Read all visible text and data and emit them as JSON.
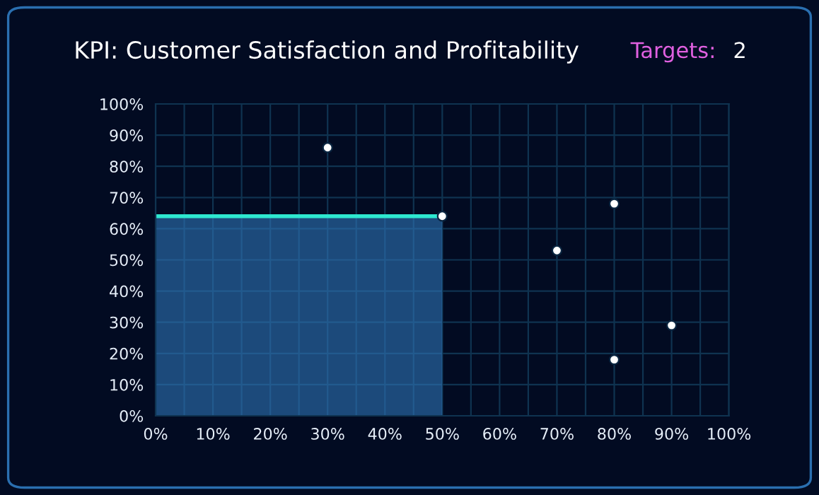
{
  "chart_data": {
    "type": "scatter",
    "title": "KPI: Customer Satisfaction and Profitability",
    "annotations": [
      "Targets:",
      "2"
    ],
    "series": [
      {
        "type": "area",
        "color": "#2ee8d0",
        "x": [
          0,
          50
        ],
        "values": [
          64,
          64
        ]
      },
      {
        "color": "#ffffff",
        "marker": "circle",
        "x": [
          50
        ],
        "values": [
          64
        ]
      },
      {
        "color": "#ffffff",
        "marker": "circle",
        "x": [
          30,
          70,
          80,
          80,
          90
        ],
        "values": [
          86,
          53,
          68,
          18,
          29
        ]
      }
    ],
    "xlim": [
      0,
      100
    ],
    "xticks": [
      {
        "value": 0,
        "label": "0%"
      },
      {
        "value": 5,
        "label": null
      },
      {
        "value": 10,
        "label": "10%"
      },
      {
        "value": 15,
        "label": null
      },
      {
        "value": 20,
        "label": "20%"
      },
      {
        "value": 25,
        "label": null
      },
      {
        "value": 30,
        "label": "30%"
      },
      {
        "value": 35,
        "label": null
      },
      {
        "value": 40,
        "label": "40%"
      },
      {
        "value": 45,
        "label": null
      },
      {
        "value": 50,
        "label": "50%"
      },
      {
        "value": 55,
        "label": null
      },
      {
        "value": 60,
        "label": "60%"
      },
      {
        "value": 65,
        "label": null
      },
      {
        "value": 70,
        "label": "70%"
      },
      {
        "value": 75,
        "label": null
      },
      {
        "value": 80,
        "label": "80%"
      },
      {
        "value": 85,
        "label": null
      },
      {
        "value": 90,
        "label": "90%"
      },
      {
        "value": 95,
        "label": null
      },
      {
        "value": 100,
        "label": "100%"
      }
    ],
    "ylim": [
      0,
      100
    ],
    "yticks": [
      {
        "value": 0,
        "label": "0%"
      },
      {
        "value": 10,
        "label": "10%"
      },
      {
        "value": 20,
        "label": "20%"
      },
      {
        "value": 30,
        "label": "30%"
      },
      {
        "value": 40,
        "label": "40%"
      },
      {
        "value": 50,
        "label": "50%"
      },
      {
        "value": 60,
        "label": "60%"
      },
      {
        "value": 70,
        "label": "70%"
      },
      {
        "value": 80,
        "label": "80%"
      },
      {
        "value": 90,
        "label": "90%"
      },
      {
        "value": 100,
        "label": "100%"
      }
    ],
    "grid": true,
    "legend": false
  }
}
